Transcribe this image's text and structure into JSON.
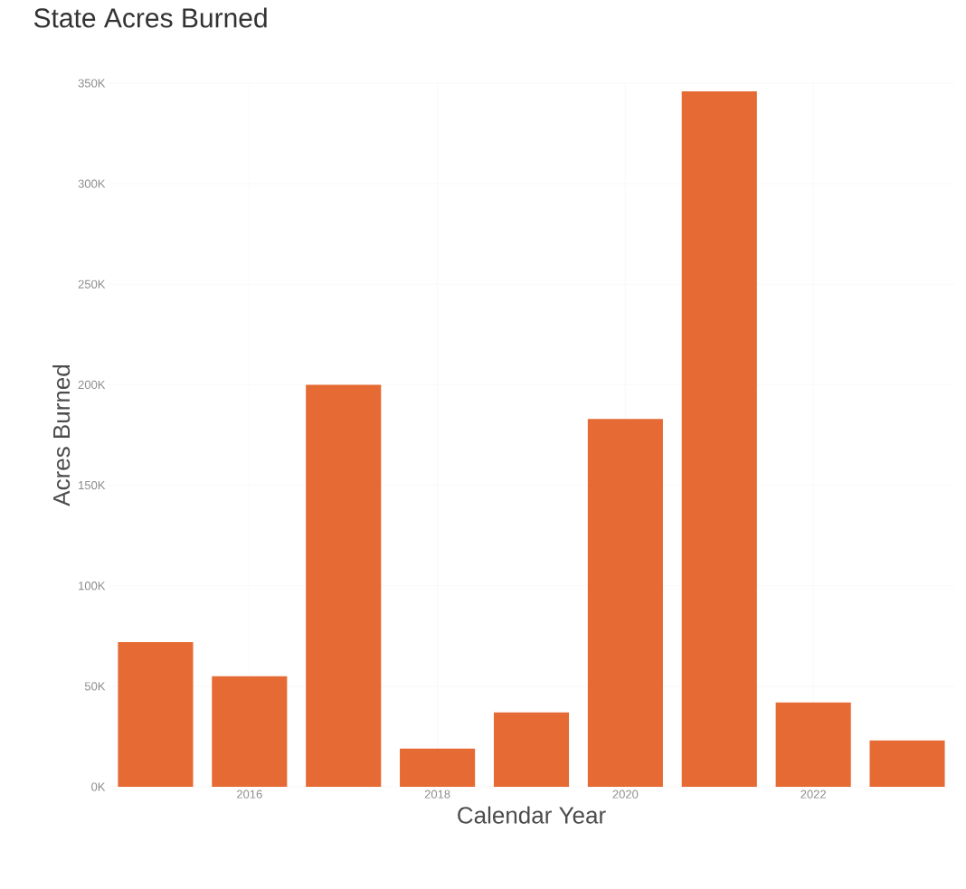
{
  "chart_data": {
    "type": "bar",
    "title": "State Acres Burned",
    "xlabel": "Calendar Year",
    "ylabel": "Acres Burned",
    "x": [
      2015,
      2016,
      2017,
      2018,
      2019,
      2020,
      2021,
      2022,
      2023
    ],
    "values": [
      72000,
      55000,
      200000,
      19000,
      37000,
      183000,
      346000,
      42000,
      23000
    ],
    "color": "#e56a33",
    "xlim": [
      2014.5,
      2023.5
    ],
    "xticks": [
      2016,
      2018,
      2020,
      2022
    ],
    "ylim": [
      0,
      350000
    ],
    "yticks": [
      {
        "value": 0,
        "label": "0K"
      },
      {
        "value": 50000,
        "label": "50K"
      },
      {
        "value": 100000,
        "label": "100K"
      },
      {
        "value": 150000,
        "label": "150K"
      },
      {
        "value": 200000,
        "label": "200K"
      },
      {
        "value": 250000,
        "label": "250K"
      },
      {
        "value": 300000,
        "label": "300K"
      },
      {
        "value": 350000,
        "label": "350K"
      }
    ],
    "grid": true
  }
}
